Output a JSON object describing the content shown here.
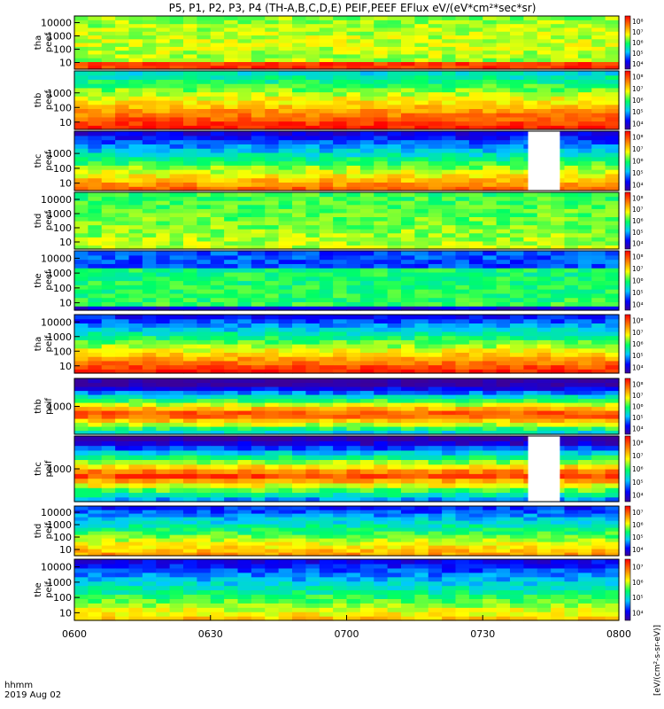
{
  "chart_data": {
    "type": "heatmap",
    "title": "P5, P1, P2, P3, P4 (TH-A,B,C,D,E) PEIF,PEEF EFlux eV/(eV*cm²*sec*sr)",
    "x_axis": {
      "tick_labels": [
        "0600",
        "0630",
        "0700",
        "0730",
        "0800"
      ],
      "corner_label_line1": "hhmm",
      "corner_label_line2": "2019 Aug 02"
    },
    "colorbar_unit_label": "[eV/(cm²-s-sr-eV)]",
    "panels": [
      {
        "probe": "tha",
        "product": "peef",
        "yticks": [
          "10",
          "100",
          "1000",
          "10000"
        ],
        "cb_ticks": [
          "10⁴",
          "10⁵",
          "10⁶",
          "10⁷",
          "10⁸"
        ]
      },
      {
        "probe": "thb",
        "product": "peef",
        "yticks": [
          "10",
          "100",
          "1000"
        ],
        "cb_ticks": [
          "10⁴",
          "10⁵",
          "10⁶",
          "10⁷",
          "10⁸"
        ]
      },
      {
        "probe": "thc",
        "product": "peef",
        "yticks": [
          "10",
          "100",
          "1000"
        ],
        "cb_ticks": [
          "10⁴",
          "10⁵",
          "10⁶",
          "10⁷",
          "10⁸"
        ]
      },
      {
        "probe": "thd",
        "product": "peef",
        "yticks": [
          "10",
          "100",
          "1000",
          "10000"
        ],
        "cb_ticks": [
          "10⁴",
          "10⁵",
          "10⁶",
          "10⁷",
          "10⁸"
        ]
      },
      {
        "probe": "the",
        "product": "peef",
        "yticks": [
          "10",
          "100",
          "1000",
          "10000"
        ],
        "cb_ticks": [
          "10⁴",
          "10⁵",
          "10⁶",
          "10⁷",
          "10⁸"
        ]
      },
      {
        "probe": "tha",
        "product": "peif",
        "yticks": [
          "10",
          "100",
          "1000",
          "10000"
        ],
        "cb_ticks": [
          "10⁴",
          "10⁵",
          "10⁶",
          "10⁷",
          "10⁸"
        ]
      },
      {
        "probe": "thb",
        "product": "peif",
        "yticks": [
          "1000"
        ],
        "cb_ticks": [
          "10⁴",
          "10⁵",
          "10⁶",
          "10⁷",
          "10⁸"
        ]
      },
      {
        "probe": "thc",
        "product": "peif",
        "yticks": [
          "1000"
        ],
        "cb_ticks": [
          "10⁴",
          "10⁵",
          "10⁶",
          "10⁷",
          "10⁸"
        ]
      },
      {
        "probe": "thd",
        "product": "peif",
        "yticks": [
          "10",
          "100",
          "1000",
          "10000"
        ],
        "cb_ticks": [
          "10⁴",
          "10⁵",
          "10⁶",
          "10⁷"
        ]
      },
      {
        "probe": "the",
        "product": "peif",
        "yticks": [
          "10",
          "100",
          "1000",
          "10000"
        ],
        "cb_ticks": [
          "10⁴",
          "10⁵",
          "10⁶",
          "10⁷"
        ]
      }
    ],
    "data_gaps": [
      {
        "panel": 2,
        "start": "0740",
        "end": "0747"
      },
      {
        "panel": 7,
        "start": "0740",
        "end": "0747"
      }
    ]
  }
}
